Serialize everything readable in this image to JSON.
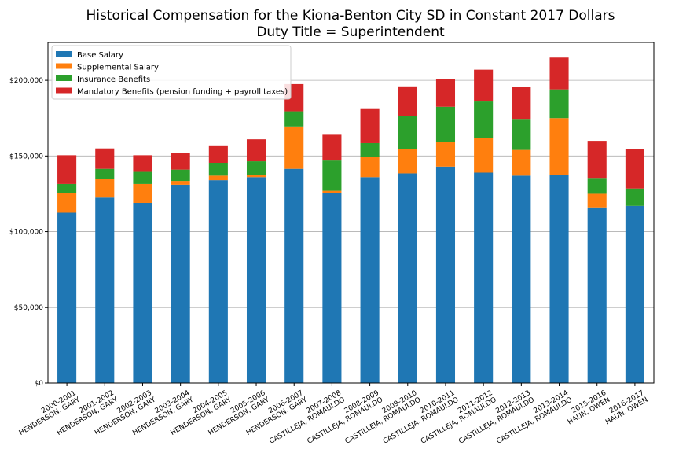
{
  "chart_data": {
    "type": "bar",
    "stacked": true,
    "title": "Historical Compensation for the Kiona-Benton City SD in Constant 2017 Dollars",
    "subtitle": "Duty Title = Superintendent",
    "xlabel": "",
    "ylabel": "",
    "ylim": [
      0,
      225000
    ],
    "yticks": [
      0,
      50000,
      100000,
      150000,
      200000
    ],
    "ytick_labels": [
      "$0",
      "$50,000",
      "$100,000",
      "$150,000",
      "$200,000"
    ],
    "grid": "horizontal",
    "legend_position": "top-left",
    "categories": [
      [
        "2000-2001",
        "HENDERSON, GARY"
      ],
      [
        "2001-2002",
        "HENDERSON, GARY"
      ],
      [
        "2002-2003",
        "HENDERSON, GARY"
      ],
      [
        "2003-2004",
        "HENDERSON, GARY"
      ],
      [
        "2004-2005",
        "HENDERSON, GARY"
      ],
      [
        "2005-2006",
        "HENDERSON, GARY"
      ],
      [
        "2006-2007",
        "HENDERSON, GARY"
      ],
      [
        "2007-2008",
        "CASTILLEJA, ROMAULDO"
      ],
      [
        "2008-2009",
        "CASTILLEJA, ROMAULDO"
      ],
      [
        "2009-2010",
        "CASTILLEJA, ROMAULDO"
      ],
      [
        "2010-2011",
        "CASTILLEJA, ROMAULDO"
      ],
      [
        "2011-2012",
        "CASTILLEJA, ROMAULDO"
      ],
      [
        "2012-2013",
        "CASTILLEJA, ROMAULDO"
      ],
      [
        "2013-2014",
        "CASTILLEJA, ROMAULDO"
      ],
      [
        "2015-2016",
        "HAUN, OWEN"
      ],
      [
        "2016-2017",
        "HAUN, OWEN"
      ]
    ],
    "series": [
      {
        "name": "Base Salary",
        "color": "#1f77b4",
        "values": [
          112500,
          122500,
          119000,
          131000,
          134000,
          136000,
          141500,
          125500,
          136000,
          138500,
          143000,
          139000,
          137000,
          137500,
          116000,
          117000
        ]
      },
      {
        "name": "Supplemental Salary",
        "color": "#ff7f0e",
        "values": [
          13000,
          12500,
          12500,
          2500,
          3000,
          1500,
          28000,
          1500,
          13500,
          16000,
          16000,
          23000,
          17000,
          37500,
          9000,
          0
        ]
      },
      {
        "name": "Insurance Benefits",
        "color": "#2ca02c",
        "values": [
          6000,
          6500,
          8000,
          7500,
          8500,
          9000,
          10000,
          20000,
          9000,
          22000,
          23500,
          24000,
          20500,
          19000,
          10500,
          11500
        ]
      },
      {
        "name": "Mandatory Benefits (pension funding + payroll taxes)",
        "color": "#d62728",
        "values": [
          19000,
          13500,
          11000,
          11000,
          11000,
          14500,
          18000,
          17000,
          23000,
          19500,
          18500,
          21000,
          21000,
          21000,
          24500,
          26000
        ]
      }
    ]
  }
}
